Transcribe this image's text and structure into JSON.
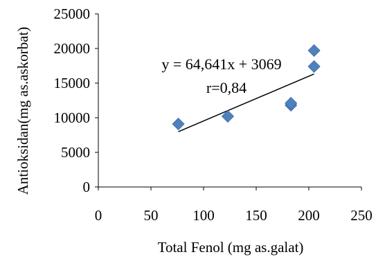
{
  "chart_data": {
    "type": "scatter",
    "title": "",
    "xlabel": "Total Fenol (mg as.galat)",
    "ylabel": "Antioksidan(mg as.askorbat)",
    "xlim": [
      0,
      250
    ],
    "ylim": [
      0,
      25000
    ],
    "x_ticks": [
      "0",
      "50",
      "100",
      "150",
      "200",
      "250"
    ],
    "y_ticks": [
      "0",
      "5000",
      "10000",
      "15000",
      "20000",
      "25000"
    ],
    "grid": false,
    "legend": "none",
    "series": [
      {
        "marker": "diamond",
        "color": "#4f81bd",
        "points": [
          {
            "x": 76,
            "y": 9100
          },
          {
            "x": 123,
            "y": 10200
          },
          {
            "x": 183,
            "y": 11800
          },
          {
            "x": 183,
            "y": 12100
          },
          {
            "x": 205,
            "y": 17400
          },
          {
            "x": 205,
            "y": 19700
          }
        ]
      }
    ],
    "trendline": {
      "slope": 64.641,
      "intercept": 3069,
      "x_range": [
        76,
        205
      ],
      "color": "#000000"
    },
    "annotations": {
      "equation": "y = 64,641x + 3069",
      "r": "r=0,84"
    }
  }
}
